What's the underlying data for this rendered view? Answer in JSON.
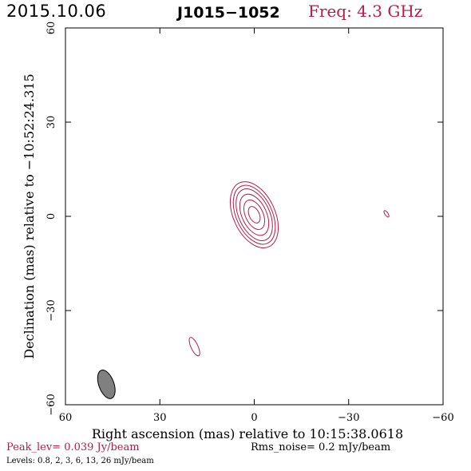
{
  "header": {
    "date": "2015.10.06",
    "source": "J1015−1052",
    "freq_label": "Freq: 4.3 GHz"
  },
  "footer": {
    "peak": "Peak_lev=  0.039 Jy/beam",
    "rms": "Rms_noise=   0.2 mJy/beam",
    "levels": "Levels: 0.8,   2,   3,   6,  13,  26 mJy/beam"
  },
  "colors": {
    "contour": "#b0204a",
    "beam_fill": "#808080",
    "axes": "#000000"
  },
  "chart_data": {
    "type": "contour",
    "xlabel": "Right ascension (mas) relative to 10:15:38.0618",
    "ylabel": "Declination (mas) relative to −10:52:24.315",
    "xlim": [
      60,
      -60
    ],
    "ylim": [
      -60,
      60
    ],
    "xticks": [
      60,
      30,
      0,
      -30,
      -60
    ],
    "yticks": [
      -60,
      -30,
      0,
      30,
      60
    ],
    "xtick_labels": [
      "60",
      "30",
      "0",
      "−30",
      "−60"
    ],
    "ytick_labels": [
      "−60",
      "−30",
      "0",
      "30",
      "60"
    ],
    "peak_jy_per_beam": 0.039,
    "rms_mjy_per_beam": 0.2,
    "contour_levels_mjy": [
      0.8,
      2,
      3,
      6,
      13,
      26
    ],
    "main_component": {
      "center_ra_mas": 0,
      "center_dec_mas": 0.5,
      "contours": [
        {
          "level_mjy": 0.8,
          "semi_major_mas": 11.2,
          "semi_minor_mas": 6.6,
          "pa_deg": 25
        },
        {
          "level_mjy": 2,
          "semi_major_mas": 10.0,
          "semi_minor_mas": 5.7,
          "pa_deg": 25
        },
        {
          "level_mjy": 3,
          "semi_major_mas": 8.8,
          "semi_minor_mas": 4.9,
          "pa_deg": 25
        },
        {
          "level_mjy": 6,
          "semi_major_mas": 7.0,
          "semi_minor_mas": 3.9,
          "pa_deg": 25
        },
        {
          "level_mjy": 13,
          "semi_major_mas": 5.0,
          "semi_minor_mas": 2.8,
          "pa_deg": 25
        },
        {
          "level_mjy": 26,
          "semi_major_mas": 2.8,
          "semi_minor_mas": 1.6,
          "pa_deg": 25
        }
      ]
    },
    "minor_components": [
      {
        "center_ra_mas": 19,
        "center_dec_mas": -41.5,
        "semi_major_mas": 3.2,
        "semi_minor_mas": 1.1,
        "pa_deg": 25,
        "level_mjy": 0.8
      },
      {
        "center_ra_mas": -42,
        "center_dec_mas": 0.8,
        "semi_major_mas": 1.2,
        "semi_minor_mas": 0.5,
        "pa_deg": 35,
        "level_mjy": 0.8
      }
    ],
    "beam": {
      "center_ra_mas": 47,
      "center_dec_mas": -53.5,
      "major_mas": 9.5,
      "minor_mas": 4.8,
      "pa_deg": 20
    }
  }
}
